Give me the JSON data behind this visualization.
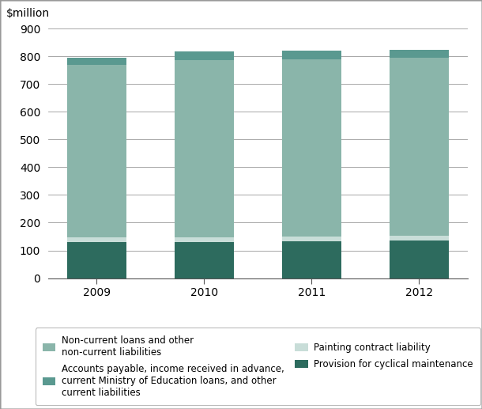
{
  "years": [
    "2009",
    "2010",
    "2011",
    "2012"
  ],
  "provision_cyclical": [
    130,
    130,
    133,
    135
  ],
  "painting_contract": [
    18,
    18,
    18,
    18
  ],
  "non_current_loans": [
    622,
    637,
    639,
    642
  ],
  "accounts_payable": [
    25,
    32,
    30,
    28
  ],
  "color_provision": "#2d6b5e",
  "color_painting": "#c8ddd8",
  "color_non_current": "#8ab5aa",
  "color_accounts": "#5a9990",
  "ylabel": "$million",
  "ylim": [
    0,
    900
  ],
  "yticks": [
    0,
    100,
    200,
    300,
    400,
    500,
    600,
    700,
    800,
    900
  ],
  "legend_labels": [
    "Non-current loans and other\nnon-current liabilities",
    "Accounts payable, income received in advance,\ncurrent Ministry of Education loans, and other\ncurrent liabilities",
    "Painting contract liability",
    "Provision for cyclical maintenance"
  ],
  "background_color": "#ffffff",
  "grid_color": "#999999",
  "bar_width": 0.55
}
